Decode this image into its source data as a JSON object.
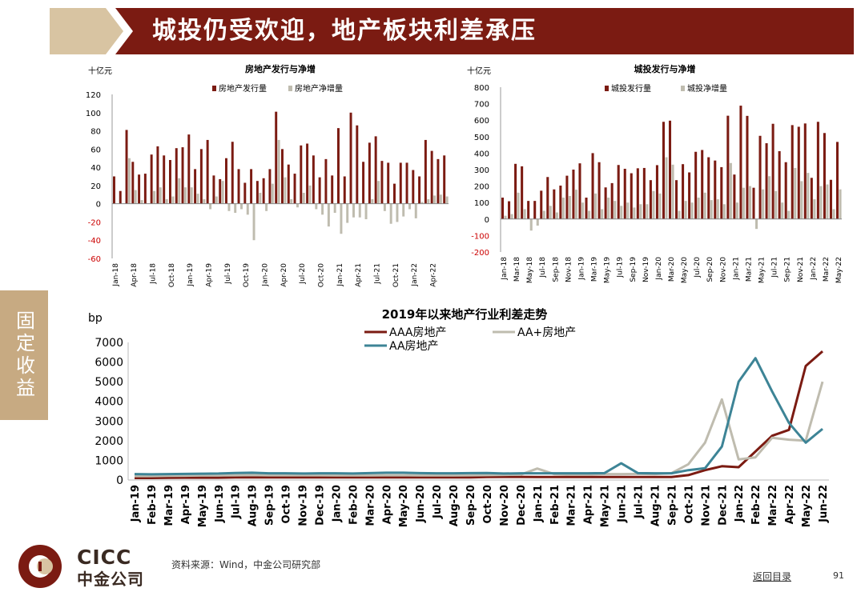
{
  "header": {
    "title": "城投仍受欢迎，地产板块利差承压"
  },
  "sidebar": {
    "tab": "固定收益"
  },
  "footer": {
    "source": "资料来源：Wind，中金公司研究部",
    "back": "返回目录",
    "page": "91"
  },
  "logo": {
    "en": "CICC",
    "cn": "中金公司"
  },
  "colors": {
    "dark_red": "#7b1b12",
    "gray": "#bfbcaf",
    "teal": "#3d8496",
    "tan": "#c7aa82"
  },
  "chart_data": [
    {
      "type": "bar",
      "title": "房地产发行与净增",
      "ylabel": "十亿元",
      "ylim": [
        -60,
        120
      ],
      "yticks": [
        120,
        100,
        80,
        60,
        40,
        20,
        0,
        -20,
        -40,
        -60
      ],
      "tick_labels": [
        "Jan-18",
        "Apr-18",
        "Jul-18",
        "Oct-18",
        "Jan-19",
        "Apr-19",
        "Jul-19",
        "Oct-19",
        "Jan-20",
        "Apr-20",
        "Jul-20",
        "Oct-20",
        "Jan-21",
        "Apr-21",
        "Jul-21",
        "Oct-21",
        "Jan-22",
        "Apr-22"
      ],
      "legend_position": "top",
      "series": [
        {
          "name": "房地产发行量",
          "color": "#7b1b12",
          "values": [
            30,
            14,
            81,
            46,
            32,
            33,
            54,
            63,
            53,
            48,
            61,
            62,
            76,
            38,
            60,
            70,
            31,
            27,
            50,
            68,
            38,
            23,
            38,
            25,
            28,
            38,
            101,
            60,
            43,
            33,
            64,
            66,
            53,
            29,
            49,
            31,
            83,
            30,
            100,
            86,
            46,
            67,
            74,
            47,
            45,
            22,
            45,
            45,
            37,
            30,
            70,
            58,
            49,
            53
          ]
        },
        {
          "name": "房地产净增量",
          "color": "#bfbcaf",
          "values": [
            0,
            0,
            50,
            15,
            4,
            0,
            14,
            18,
            5,
            8,
            28,
            18,
            18,
            11,
            5,
            -6,
            8,
            25,
            -8,
            -10,
            -6,
            -12,
            -40,
            12,
            -8,
            22,
            70,
            29,
            5,
            -4,
            12,
            20,
            -6,
            -12,
            -25,
            -10,
            -33,
            -21,
            -15,
            -15,
            -17,
            5,
            25,
            -8,
            -22,
            -20,
            -14,
            -6,
            -16,
            2,
            5,
            9,
            10,
            8
          ]
        }
      ]
    },
    {
      "type": "bar",
      "title": "城投发行与净增",
      "ylabel": "十亿元",
      "ylim": [
        -200,
        800
      ],
      "yticks": [
        800,
        700,
        600,
        500,
        400,
        300,
        200,
        100,
        0,
        -100,
        -200
      ],
      "tick_labels": [
        "Jan-18",
        "Mar-18",
        "May-18",
        "Jul-18",
        "Sep-18",
        "Nov-18",
        "Jan-19",
        "Mar-19",
        "May-19",
        "Jul-19",
        "Sep-19",
        "Nov-19",
        "Jan-20",
        "Mar-20",
        "May-20",
        "Jul-20",
        "Sep-20",
        "Nov-20",
        "Jan-21",
        "Mar-21",
        "May-21",
        "Jul-21",
        "Sep-21",
        "Nov-21",
        "Jan-22",
        "Mar-22",
        "May-22"
      ],
      "legend_position": "top",
      "series": [
        {
          "name": "城投发行量",
          "color": "#7b1b12",
          "values": [
            130,
            108,
            335,
            320,
            110,
            110,
            172,
            255,
            180,
            203,
            263,
            300,
            338,
            130,
            400,
            345,
            192,
            218,
            328,
            305,
            278,
            308,
            310,
            236,
            327,
            590,
            597,
            236,
            333,
            283,
            408,
            419,
            375,
            355,
            315,
            627,
            270,
            688,
            626,
            190,
            505,
            460,
            578,
            412,
            345,
            570,
            560,
            580,
            250,
            590,
            522,
            238,
            468
          ]
        },
        {
          "name": "城投净增量",
          "color": "#bfbcaf",
          "values": [
            20,
            30,
            160,
            60,
            -70,
            -40,
            50,
            80,
            40,
            130,
            140,
            178,
            100,
            50,
            155,
            60,
            130,
            110,
            80,
            100,
            70,
            90,
            90,
            170,
            155,
            375,
            330,
            50,
            110,
            100,
            130,
            160,
            115,
            120,
            90,
            340,
            100,
            190,
            200,
            -60,
            180,
            260,
            170,
            100,
            50,
            310,
            230,
            280,
            120,
            200,
            210,
            60,
            180
          ]
        }
      ]
    },
    {
      "type": "line",
      "title": "2019年以来地产行业利差走势",
      "ylabel": "bp",
      "ylim": [
        0,
        7000
      ],
      "yticks": [
        7000,
        6000,
        5000,
        4000,
        3000,
        2000,
        1000,
        0
      ],
      "legend_position": "top-right",
      "categories": [
        "Jan-19",
        "Feb-19",
        "Mar-19",
        "Apr-19",
        "May-19",
        "Jun-19",
        "Jul-19",
        "Aug-19",
        "Sep-19",
        "Oct-19",
        "Nov-19",
        "Dec-19",
        "Jan-20",
        "Feb-20",
        "Mar-20",
        "Apr-20",
        "May-20",
        "Jun-20",
        "Jul-20",
        "Aug-20",
        "Sep-20",
        "Oct-20",
        "Nov-20",
        "Dec-20",
        "Jan-21",
        "Feb-21",
        "Mar-21",
        "Apr-21",
        "May-21",
        "Jun-21",
        "Jul-21",
        "Aug-21",
        "Sep-21",
        "Oct-21",
        "Nov-21",
        "Dec-21",
        "Jan-22",
        "Feb-22",
        "Mar-22",
        "Apr-22",
        "May-22",
        "Jun-22"
      ],
      "series": [
        {
          "name": "AAA房地产",
          "color": "#7b1b12",
          "values": [
            100,
            100,
            110,
            120,
            120,
            120,
            130,
            130,
            130,
            130,
            130,
            130,
            130,
            130,
            130,
            130,
            130,
            130,
            130,
            130,
            130,
            150,
            160,
            160,
            150,
            150,
            150,
            150,
            150,
            150,
            150,
            150,
            150,
            250,
            500,
            700,
            650,
            1450,
            2250,
            2550,
            5800,
            6550
          ]
        },
        {
          "name": "AA+房地产",
          "color": "#bfbcaf",
          "values": [
            200,
            200,
            210,
            220,
            230,
            230,
            240,
            250,
            240,
            240,
            240,
            240,
            230,
            230,
            230,
            240,
            240,
            230,
            230,
            230,
            240,
            250,
            260,
            270,
            580,
            300,
            280,
            280,
            300,
            300,
            310,
            300,
            350,
            800,
            1900,
            4100,
            1050,
            1150,
            2150,
            2050,
            2000,
            5000
          ]
        },
        {
          "name": "AA房地产",
          "color": "#3d8496",
          "values": [
            300,
            290,
            300,
            310,
            320,
            330,
            360,
            370,
            340,
            340,
            330,
            340,
            340,
            330,
            350,
            370,
            370,
            350,
            340,
            340,
            350,
            360,
            330,
            340,
            340,
            340,
            340,
            340,
            350,
            850,
            350,
            340,
            340,
            500,
            600,
            1700,
            5000,
            6200,
            4500,
            2900,
            1900,
            2600
          ]
        }
      ]
    }
  ]
}
